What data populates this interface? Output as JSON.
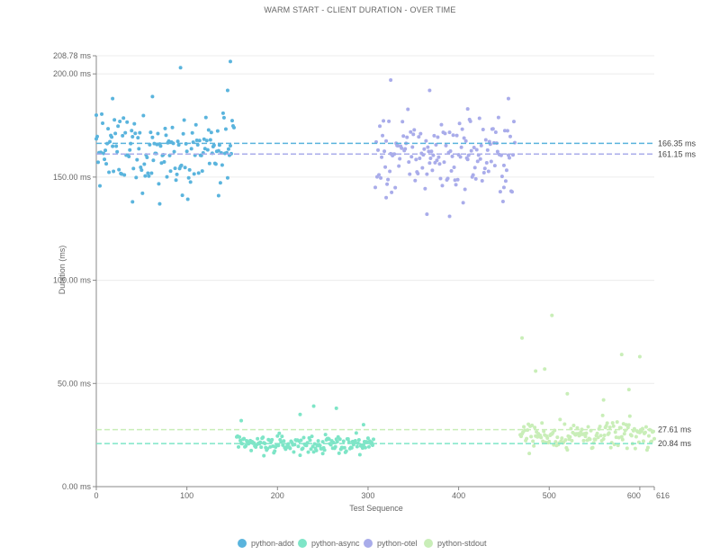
{
  "chart_data": {
    "type": "scatter",
    "title": "WARM START - CLIENT DURATION - OVER TIME",
    "xlabel": "Test Sequence",
    "ylabel": "Duration (ms)",
    "xlim": [
      0,
      616
    ],
    "ylim": [
      0,
      208.78
    ],
    "x_ticks": [
      0,
      100,
      200,
      300,
      400,
      500,
      600,
      616
    ],
    "x_tick_labels": [
      "0",
      "100",
      "200",
      "300",
      "400",
      "500",
      "600",
      "616"
    ],
    "y_ticks": [
      0,
      50,
      100,
      150,
      200,
      208.78
    ],
    "y_tick_labels": [
      "0.00 ms",
      "50.00 ms",
      "100.00 ms",
      "150.00 ms",
      "200.00 ms",
      "208.78 ms"
    ],
    "grid": true,
    "legend_position": "bottom",
    "series": [
      {
        "name": "python-adot",
        "color": "#5ab4dd",
        "x_range": [
          0,
          152
        ],
        "y_center": 163,
        "y_spread": 12,
        "extra_points": [
          [
            0,
            180
          ],
          [
            18,
            188
          ],
          [
            62,
            189
          ],
          [
            93,
            203
          ],
          [
            148,
            206
          ],
          [
            145,
            192
          ],
          [
            40,
            138
          ],
          [
            70,
            137
          ],
          [
            135,
            141
          ]
        ]
      },
      {
        "name": "python-async",
        "color": "#7ee5c7",
        "x_range": [
          155,
          306
        ],
        "y_center": 20.5,
        "y_spread": 3,
        "extra_points": [
          [
            160,
            32
          ],
          [
            225,
            35
          ],
          [
            240,
            39
          ],
          [
            265,
            38
          ],
          [
            295,
            30
          ],
          [
            185,
            15
          ],
          [
            250,
            16
          ]
        ]
      },
      {
        "name": "python-otel",
        "color": "#a9acea",
        "x_range": [
          308,
          462
        ],
        "y_center": 161,
        "y_spread": 13,
        "extra_points": [
          [
            325,
            197
          ],
          [
            368,
            192
          ],
          [
            410,
            183
          ],
          [
            455,
            188
          ],
          [
            365,
            132
          ],
          [
            390,
            131
          ],
          [
            320,
            140
          ],
          [
            450,
            145
          ]
        ]
      },
      {
        "name": "python-stdout",
        "color": "#c9eeb8",
        "x_range": [
          468,
          616
        ],
        "y_center": 25,
        "y_spread": 5,
        "extra_points": [
          [
            470,
            72
          ],
          [
            503,
            83
          ],
          [
            485,
            56
          ],
          [
            495,
            57
          ],
          [
            580,
            64
          ],
          [
            588,
            47
          ],
          [
            600,
            63
          ],
          [
            520,
            45
          ],
          [
            560,
            42
          ]
        ]
      }
    ],
    "reference_lines": [
      {
        "series": "python-adot",
        "value": 166.35,
        "label": "166.35 ms",
        "color": "#5ab4dd"
      },
      {
        "series": "python-otel",
        "value": 161.15,
        "label": "161.15 ms",
        "color": "#a9acea"
      },
      {
        "series": "python-stdout",
        "value": 27.61,
        "label": "27.61 ms",
        "color": "#c9eeb8"
      },
      {
        "series": "python-async",
        "value": 20.84,
        "label": "20.84 ms",
        "color": "#7ee5c7"
      }
    ]
  }
}
